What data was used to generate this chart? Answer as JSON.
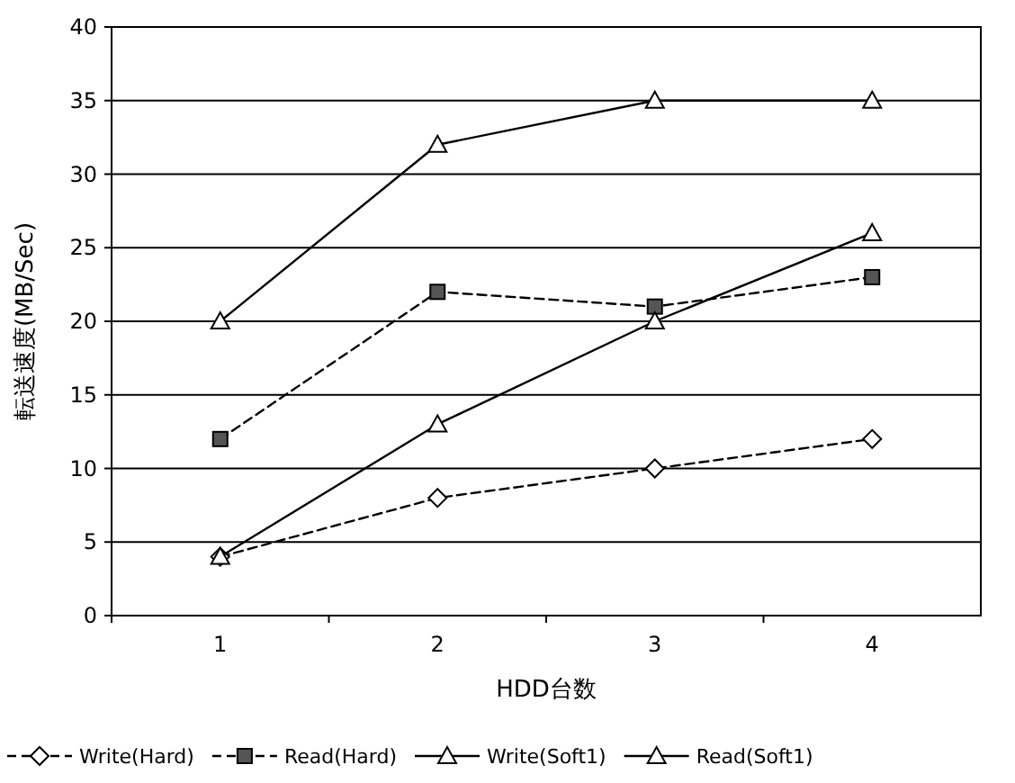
{
  "chart_data": {
    "type": "line",
    "xlabel": "HDD台数",
    "ylabel": "転送速度(MB/Sec)",
    "categories": [
      "1",
      "2",
      "3",
      "4"
    ],
    "series": [
      {
        "name": "Write(Hard)",
        "color": "#000000",
        "values": [
          4,
          8,
          10,
          12
        ],
        "marker": "diamond",
        "line_style": "dashed"
      },
      {
        "name": "Read(Hard)",
        "color": "#000000",
        "values": [
          12,
          22,
          21,
          23
        ],
        "marker": "square",
        "line_style": "dashed"
      },
      {
        "name": "Write(Soft1)",
        "color": "#000000",
        "values": [
          4,
          13,
          20,
          26
        ],
        "marker": "triangle",
        "line_style": "solid"
      },
      {
        "name": "Read(Soft1)",
        "color": "#000000",
        "values": [
          20,
          32,
          35,
          35
        ],
        "marker": "triangle",
        "line_style": "solid"
      }
    ],
    "ylim": [
      0,
      40
    ],
    "yticks": [
      0,
      5,
      10,
      15,
      20,
      25,
      30,
      35,
      40
    ],
    "grid": "y",
    "legend": "bottom"
  }
}
